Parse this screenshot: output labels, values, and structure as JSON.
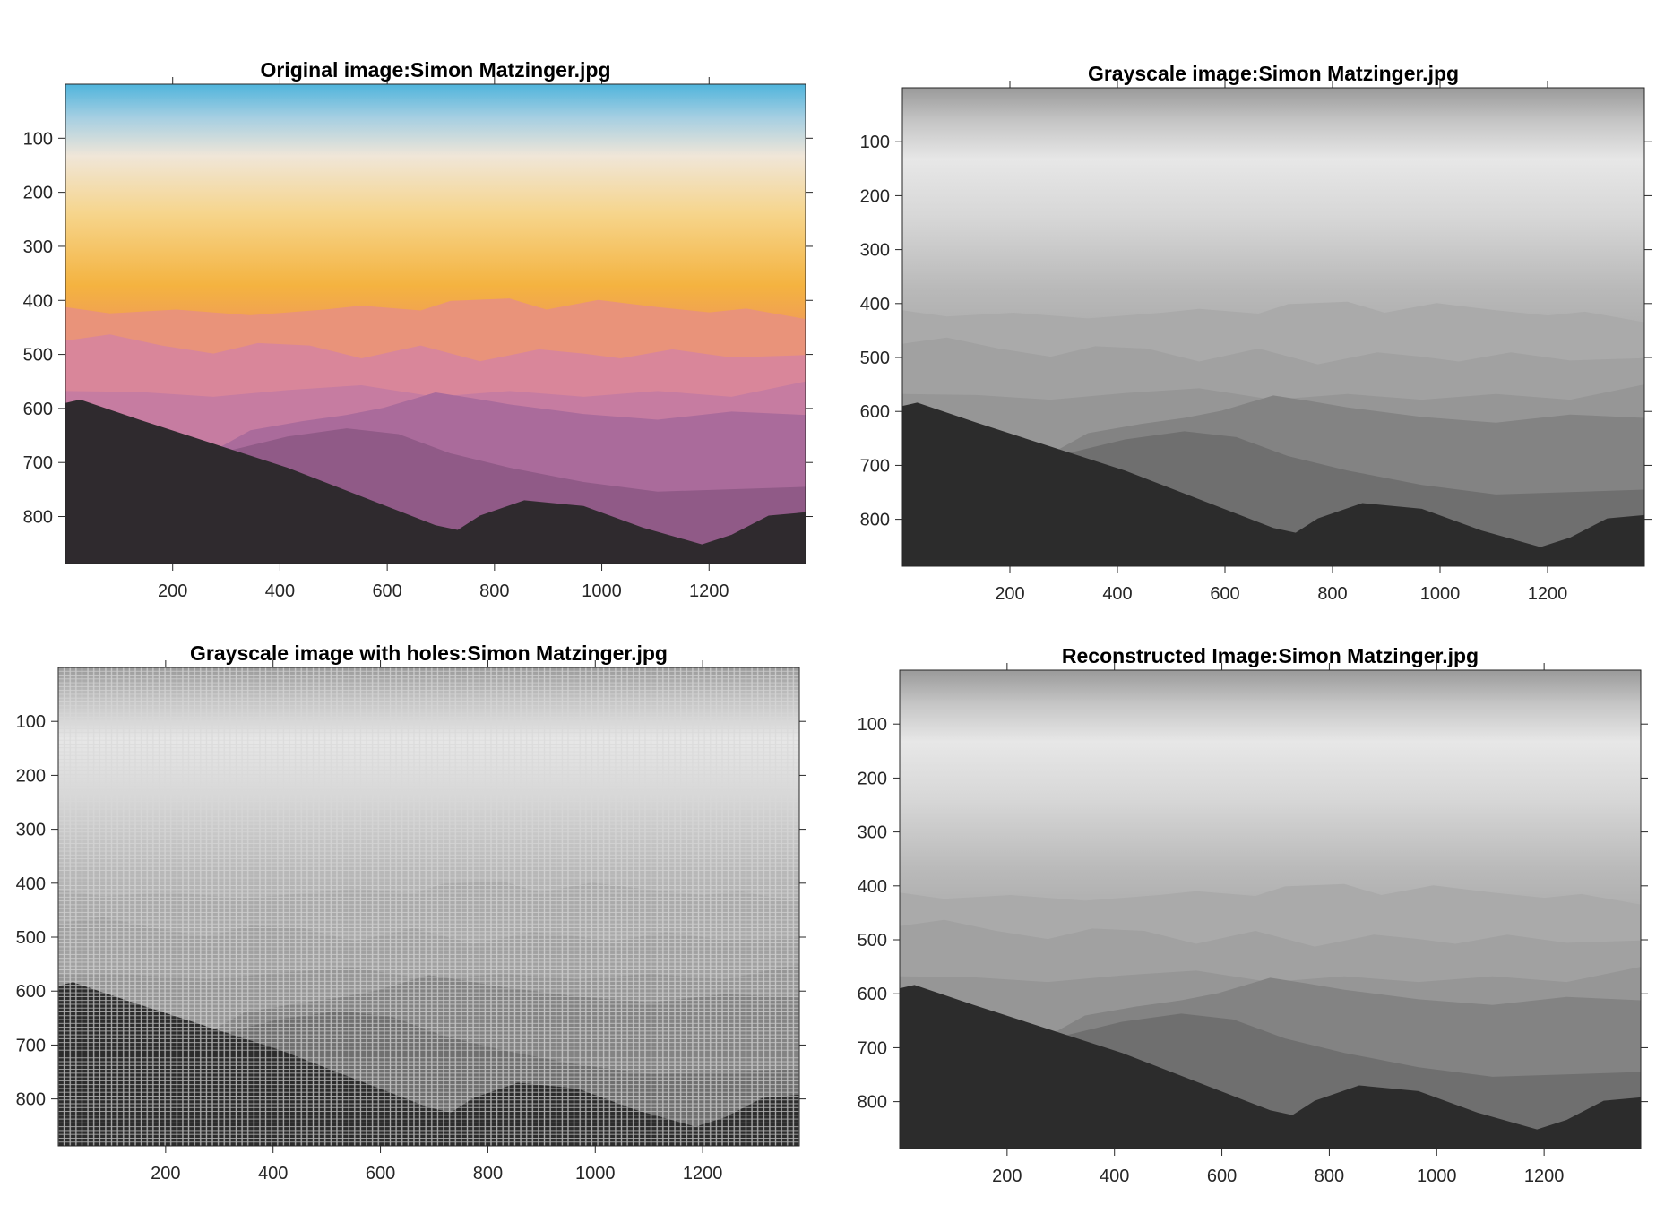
{
  "chart_data": [
    {
      "type": "image",
      "title": "Original image:Simon Matzinger.jpg",
      "colormap": "rgb",
      "xlim": [
        0,
        1380
      ],
      "ylim": [
        887,
        0
      ],
      "xticks": [
        200,
        400,
        600,
        800,
        1000,
        1200
      ],
      "yticks": [
        100,
        200,
        300,
        400,
        500,
        600,
        700,
        800
      ]
    },
    {
      "type": "image",
      "title": "Grayscale image:Simon Matzinger.jpg",
      "colormap": "gray",
      "xlim": [
        0,
        1380
      ],
      "ylim": [
        887,
        0
      ],
      "xticks": [
        200,
        400,
        600,
        800,
        1000,
        1200
      ],
      "yticks": [
        100,
        200,
        300,
        400,
        500,
        600,
        700,
        800
      ]
    },
    {
      "type": "image",
      "title": "Grayscale image with holes:Simon Matzinger.jpg",
      "colormap": "gray",
      "holes": true,
      "xlim": [
        0,
        1380
      ],
      "ylim": [
        887,
        0
      ],
      "xticks": [
        200,
        400,
        600,
        800,
        1000,
        1200
      ],
      "yticks": [
        100,
        200,
        300,
        400,
        500,
        600,
        700,
        800
      ]
    },
    {
      "type": "image",
      "title": "Reconstructed Image:Simon Matzinger.jpg",
      "colormap": "gray",
      "xlim": [
        0,
        1380
      ],
      "ylim": [
        887,
        0
      ],
      "xticks": [
        200,
        400,
        600,
        800,
        1000,
        1200
      ],
      "yticks": [
        100,
        200,
        300,
        400,
        500,
        600,
        700,
        800
      ]
    }
  ]
}
